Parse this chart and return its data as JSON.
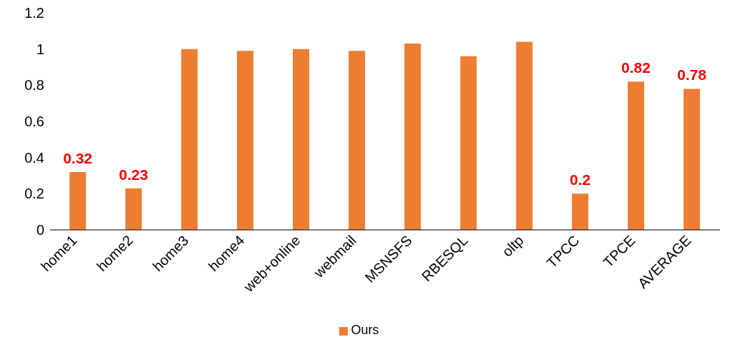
{
  "chart_data": {
    "type": "bar",
    "categories": [
      "home1",
      "home2",
      "home3",
      "home4",
      "web+online",
      "webmail",
      "MSNSFS",
      "RBESQL",
      "oltp",
      "TPCC",
      "TPCE",
      "AVERAGE"
    ],
    "series": [
      {
        "name": "Ours",
        "color": "#ed7d31",
        "values": [
          0.32,
          0.23,
          1.0,
          0.99,
          1.0,
          0.99,
          1.03,
          0.96,
          1.04,
          0.2,
          0.82,
          0.78
        ],
        "value_labels": [
          "0.32",
          "0.23",
          null,
          null,
          null,
          null,
          null,
          null,
          null,
          "0.2",
          "0.82",
          "0.78"
        ]
      }
    ],
    "ylim": [
      0,
      1.2
    ],
    "yticks": [
      0,
      0.2,
      0.4,
      0.6,
      0.8,
      1,
      1.2
    ],
    "grid": false,
    "legend": "bottom"
  }
}
